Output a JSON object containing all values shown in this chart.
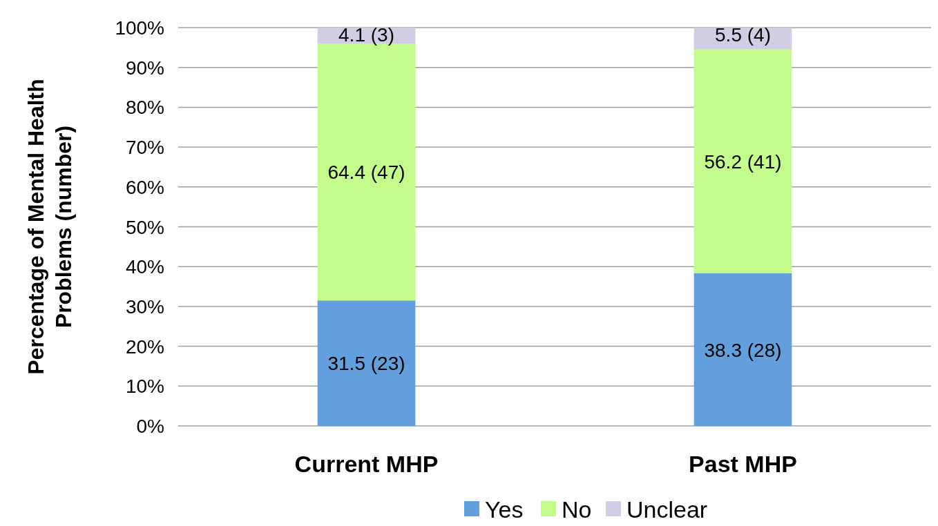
{
  "chart_data": {
    "type": "bar",
    "stacked": true,
    "categories": [
      "Current MHP",
      "Past MHP"
    ],
    "ylabel": "Percentage of Mental Health Problems (number)",
    "series": [
      {
        "name": "Yes",
        "color": "#629fdc",
        "values": [
          31.5,
          38.3
        ],
        "value_labels": [
          "31.5 (23)",
          "38.3 (28)"
        ]
      },
      {
        "name": "No",
        "color": "#c3fc8d",
        "values": [
          64.4,
          56.2
        ],
        "value_labels": [
          "64.4 (47)",
          "56.2 (41)"
        ]
      },
      {
        "name": "Unclear",
        "color": "#d3cde3",
        "values": [
          4.1,
          5.5
        ],
        "value_labels": [
          "4.1 (3)",
          "5.5 (4)"
        ]
      }
    ],
    "ylim": [
      0,
      100
    ],
    "yticks": [
      {
        "value": 0,
        "label": "0%"
      },
      {
        "value": 10,
        "label": "10%"
      },
      {
        "value": 20,
        "label": "20%"
      },
      {
        "value": 30,
        "label": "30%"
      },
      {
        "value": 40,
        "label": "40%"
      },
      {
        "value": 50,
        "label": "50%"
      },
      {
        "value": 60,
        "label": "60%"
      },
      {
        "value": 70,
        "label": "70%"
      },
      {
        "value": 80,
        "label": "80%"
      },
      {
        "value": 90,
        "label": "90%"
      },
      {
        "value": 100,
        "label": "100%"
      }
    ],
    "grid": "y",
    "legend": "bottom"
  }
}
